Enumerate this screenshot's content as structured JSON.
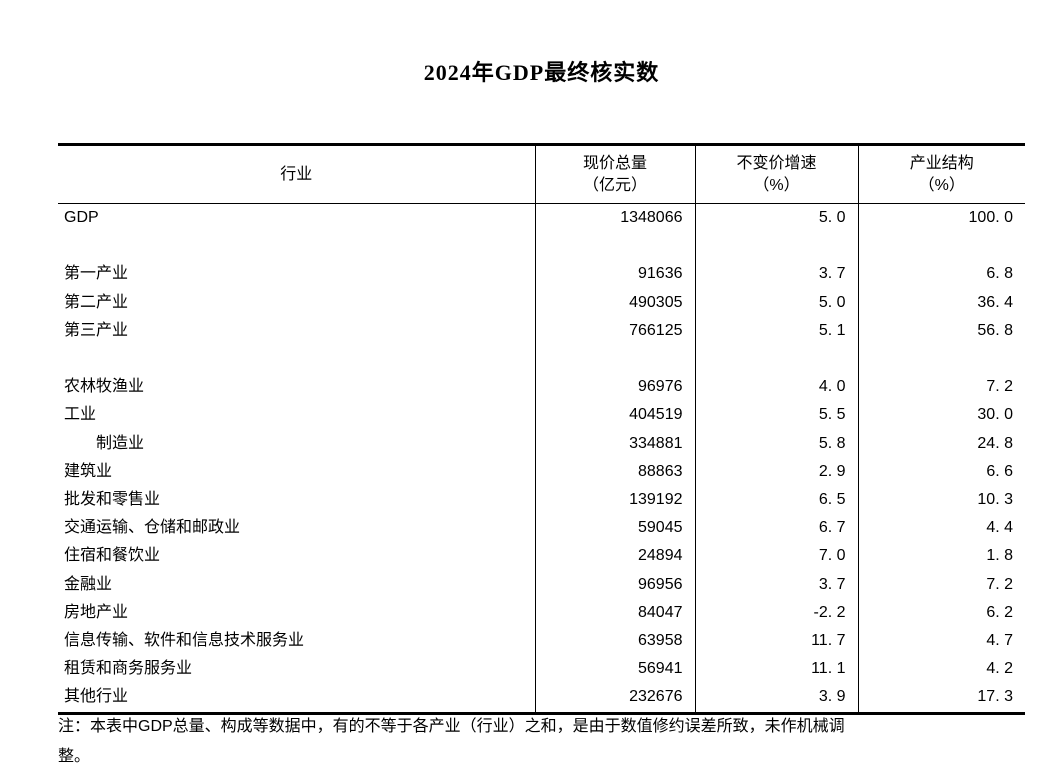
{
  "page": {
    "title": "2024年GDP最终核实数",
    "note_line1": "注：本表中GDP总量、构成等数据中，有的不等于各产业（行业）之和，是由于数值修约误差所致，未作机械调",
    "note_line2": "整。"
  },
  "table": {
    "columns": [
      {
        "label": "行业"
      },
      {
        "line1": "现价总量",
        "line2": "（亿元）"
      },
      {
        "line1": "不变价增速",
        "line2": "（%）"
      },
      {
        "line1": "产业结构",
        "line2": "（%）"
      }
    ],
    "rows": [
      {
        "industry": "GDP",
        "total": "1348066",
        "growth": "5. 0",
        "structure": "100. 0"
      },
      {
        "industry": "",
        "total": "",
        "growth": "",
        "structure": ""
      },
      {
        "industry": "第一产业",
        "total": "91636",
        "growth": "3. 7",
        "structure": "6. 8"
      },
      {
        "industry": "第二产业",
        "total": "490305",
        "growth": "5. 0",
        "structure": "36. 4"
      },
      {
        "industry": "第三产业",
        "total": "766125",
        "growth": "5. 1",
        "structure": "56. 8"
      },
      {
        "industry": "",
        "total": "",
        "growth": "",
        "structure": ""
      },
      {
        "industry": "农林牧渔业",
        "total": "96976",
        "growth": "4. 0",
        "structure": "7. 2"
      },
      {
        "industry": "工业",
        "total": "404519",
        "growth": "5. 5",
        "structure": "30. 0"
      },
      {
        "industry": "制造业",
        "total": "334881",
        "growth": "5. 8",
        "structure": "24. 8",
        "indent": true
      },
      {
        "industry": "建筑业",
        "total": "88863",
        "growth": "2. 9",
        "structure": "6. 6"
      },
      {
        "industry": "批发和零售业",
        "total": "139192",
        "growth": "6. 5",
        "structure": "10. 3"
      },
      {
        "industry": "交通运输、仓储和邮政业",
        "total": "59045",
        "growth": "6. 7",
        "structure": "4. 4"
      },
      {
        "industry": "住宿和餐饮业",
        "total": "24894",
        "growth": "7. 0",
        "structure": "1. 8"
      },
      {
        "industry": "金融业",
        "total": "96956",
        "growth": "3. 7",
        "structure": "7. 2"
      },
      {
        "industry": "房地产业",
        "total": "84047",
        "growth": "-2. 2",
        "structure": "6. 2"
      },
      {
        "industry": "信息传输、软件和信息技术服务业",
        "total": "63958",
        "growth": "11. 7",
        "structure": "4. 7"
      },
      {
        "industry": "租赁和商务服务业",
        "total": "56941",
        "growth": "11. 1",
        "structure": "4. 2"
      },
      {
        "industry": "其他行业",
        "total": "232676",
        "growth": "3. 9",
        "structure": "17. 3"
      }
    ]
  }
}
